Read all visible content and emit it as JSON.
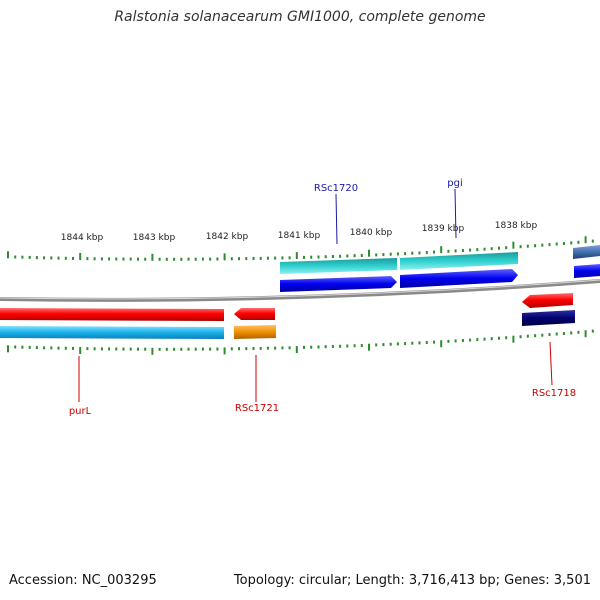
{
  "title": "Ralstonia solanacearum GMI1000, complete genome",
  "footer": {
    "accession": "Accession: NC_003295",
    "summary": "Topology: circular; Length: 3,716,413 bp; Genes: 3,501"
  },
  "colors": {
    "backbone": "#8a8a8a",
    "tick": "#2e8b2e",
    "label_forward": "#1a1aaa",
    "label_reverse": "#cc0000",
    "cds_forward": "#0a0ae6",
    "cds_reverse": "#e60000",
    "gene_forward": "#20c0c0",
    "gene_reverse": "#20b0e8"
  },
  "scale_labels": [
    "1844 kbp",
    "1843 kbp",
    "1842 kbp",
    "1841 kbp",
    "1840 kbp",
    "1839 kbp",
    "1838 kbp"
  ],
  "gene_labels": {
    "purL": "purL",
    "RSc1721": "RSc1721",
    "RSc1720": "RSc1720",
    "pgi": "pgi",
    "RSc1718": "RSc1718"
  }
}
